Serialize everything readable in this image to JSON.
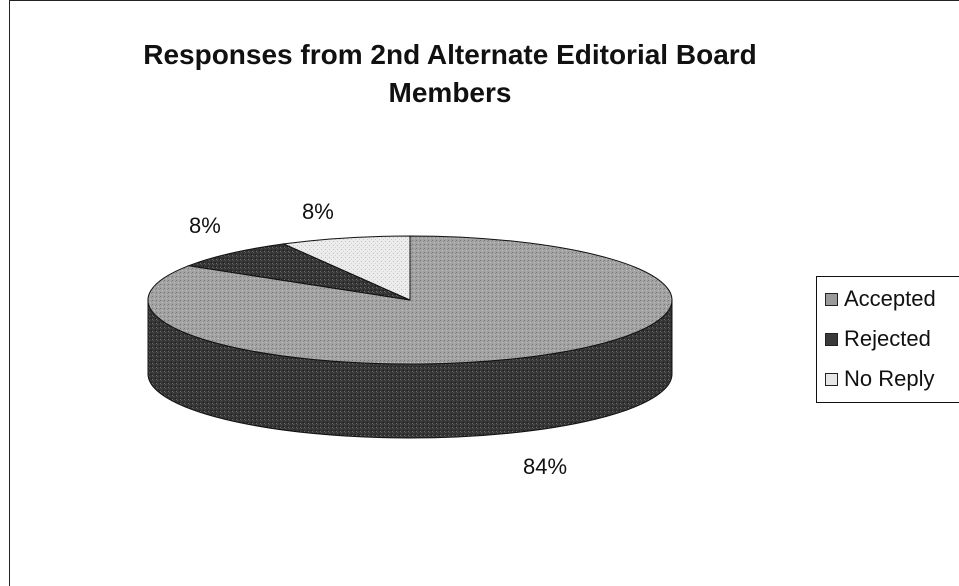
{
  "chart_data": {
    "type": "pie",
    "title": "Responses from 2nd Alternate Editorial Board Members",
    "title_lines": [
      "Responses from 2nd Alternate Editorial Board",
      "Members"
    ],
    "categories": [
      "Accepted",
      "Rejected",
      "No Reply"
    ],
    "values": [
      84,
      8,
      8
    ],
    "labels": [
      "84%",
      "8%",
      "8%"
    ],
    "colors": [
      "#9a9a9a",
      "#3a3a3a",
      "#e6e6e6"
    ],
    "legend_position": "right",
    "style": "3d-pie"
  }
}
